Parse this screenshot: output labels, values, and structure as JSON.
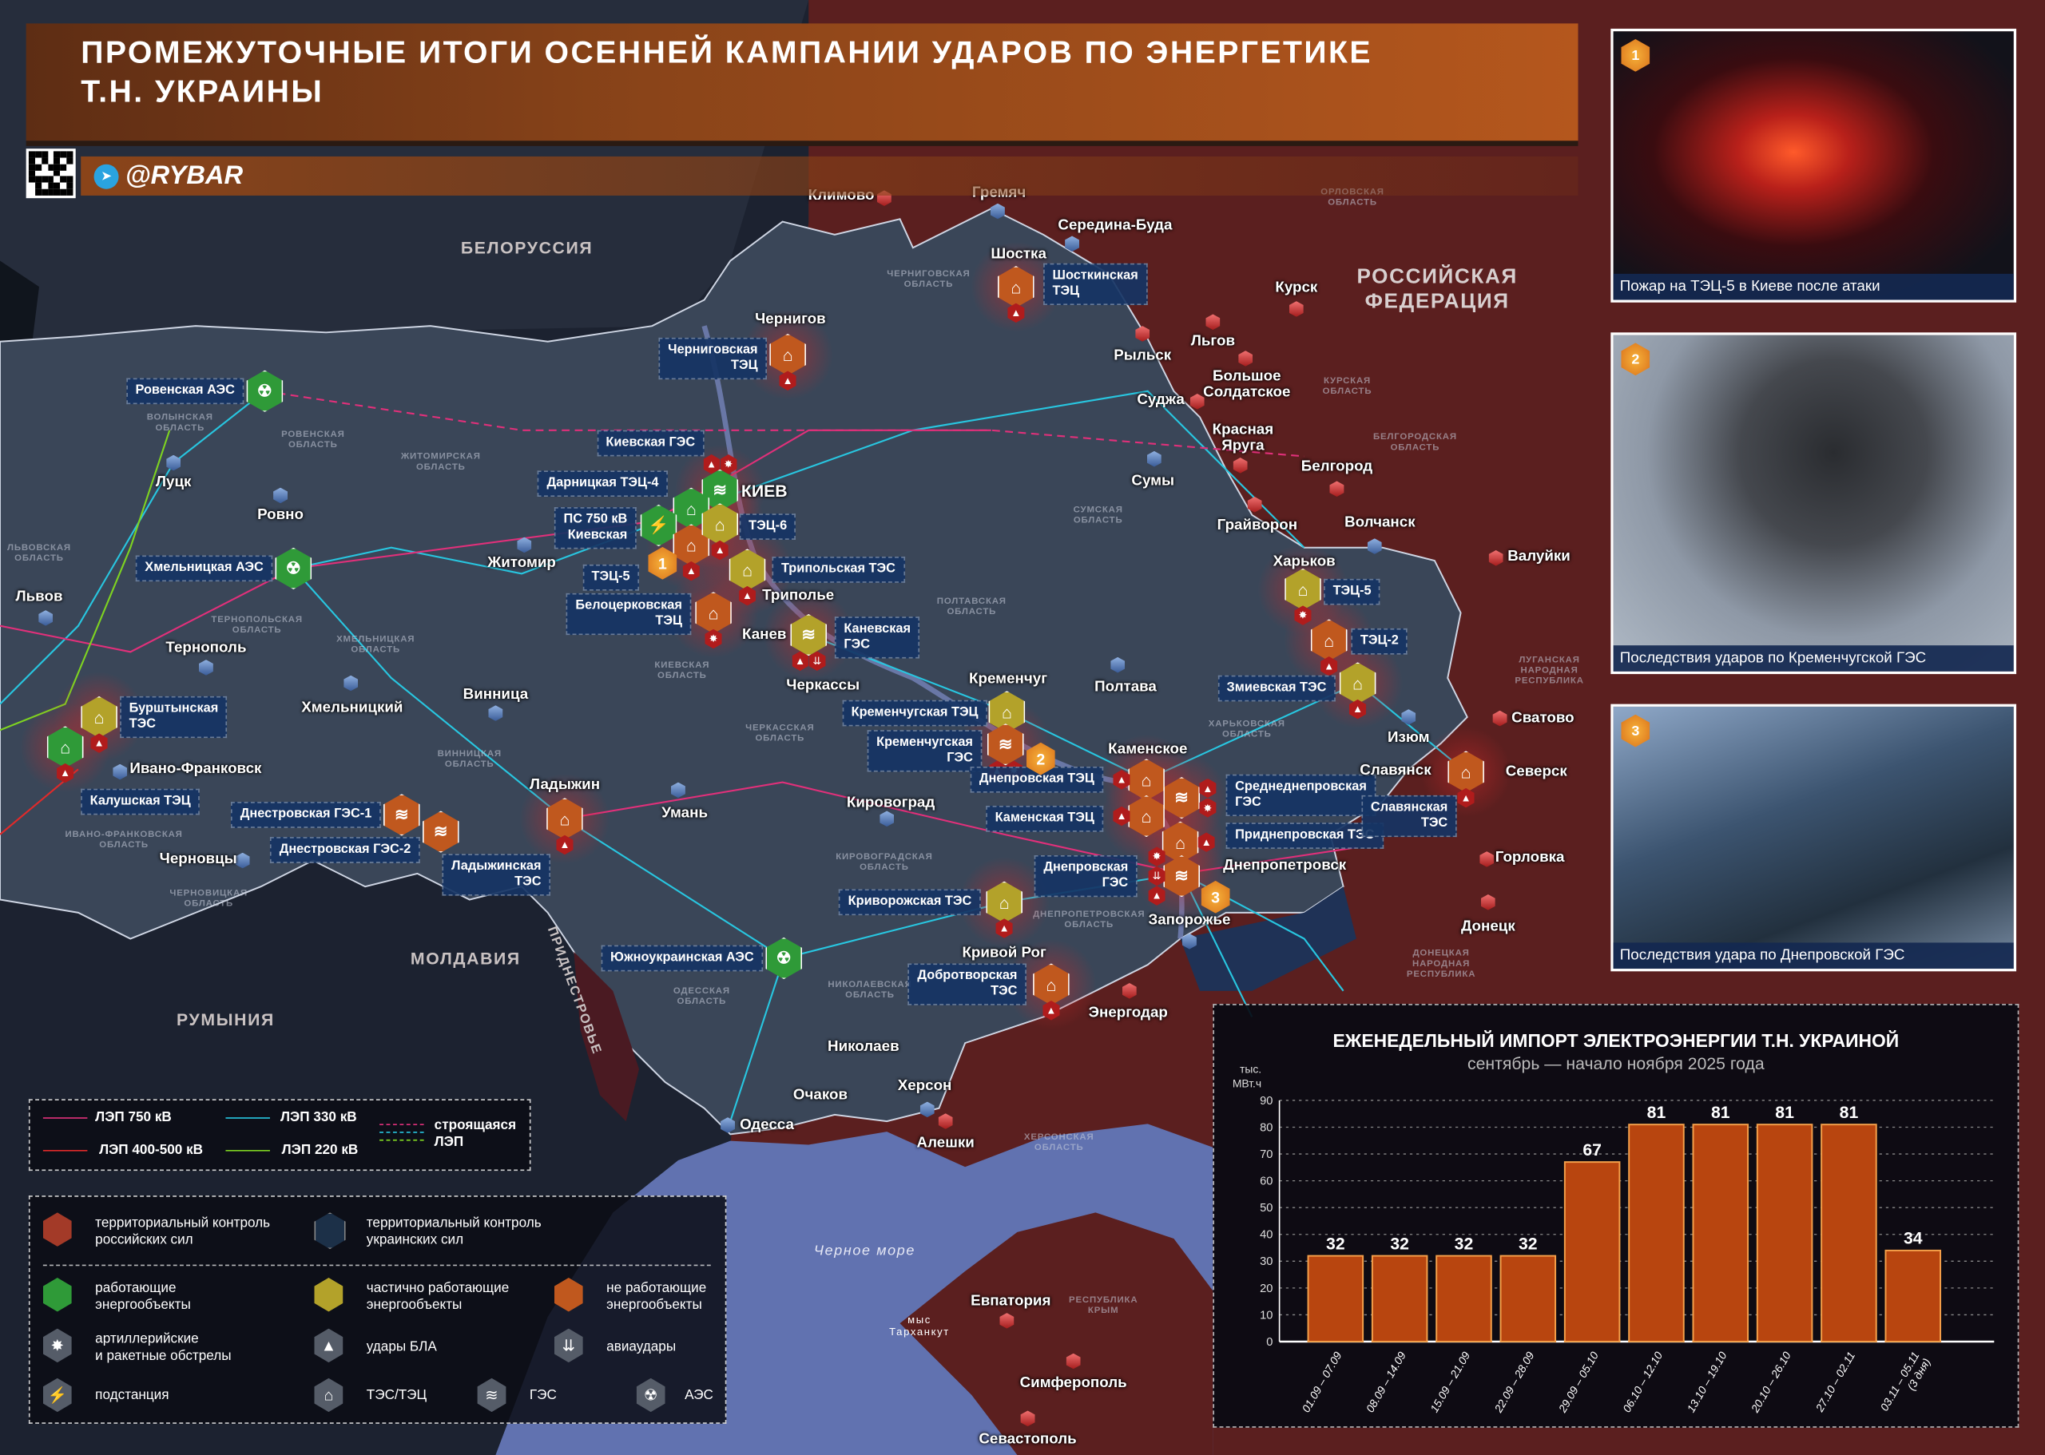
{
  "header": {
    "title_line1": "ПРОМЕЖУТОЧНЫЕ ИТОГИ ОСЕННЕЙ КАМПАНИИ УДАРОВ ПО ЭНЕРГЕТИКЕ",
    "title_line2": "Т.Н. УКРАИНЫ",
    "handle": "@RYBAR"
  },
  "countries": [
    "БЕЛОРУССИЯ",
    "РОССИЙСКАЯ\nФЕДЕРАЦИЯ",
    "МОЛДАВИЯ",
    "РУМЫНИЯ",
    "ПРИДНЕСТРОВЬЕ",
    "Черное море",
    "мыс\nТарханкут"
  ],
  "regions": [
    "ЧЕРНИГОВСКАЯ\nОБЛАСТЬ",
    "ОРЛОВСКАЯ\nОБЛАСТЬ",
    "КУРСКАЯ\nОБЛАСТЬ",
    "БЕЛГОРОДСКАЯ\nОБЛАСТЬ",
    "СУМСКАЯ\nОБЛАСТЬ",
    "ПОЛТАВСКАЯ\nОБЛАСТЬ",
    "КИЕВСКАЯ\nОБЛАСТЬ",
    "ЧЕРКАССКАЯ\nОБЛАСТЬ",
    "ХАРЬКОВСКАЯ\nОБЛАСТЬ",
    "ЛУГАНСКАЯ\nНАРОДНАЯ\nРЕСПУБЛИКА",
    "ДОНЕЦКАЯ\nНАРОДНАЯ\nРЕСПУБЛИКА",
    "ВОЛЫНСКАЯ\nОБЛАСТЬ",
    "РОВЕНСКАЯ\nОБЛАСТЬ",
    "ЖИТОМИРСКАЯ\nОБЛАСТЬ",
    "ЛЬВОВСКАЯ\nОБЛАСТЬ",
    "ТЕРНОПОЛЬСКАЯ\nОБЛАСТЬ",
    "ХМЕЛЬНИЦКАЯ\nОБЛАСТЬ",
    "ВИННИЦКАЯ\nОБЛАСТЬ",
    "КИРОВОГРАДСКАЯ\nОБЛАСТЬ",
    "ДНЕПРОПЕТРОВСКАЯ\nОБЛАСТЬ",
    "НИКОЛАЕВСКАЯ\nОБЛАСТЬ",
    "ОДЕССКАЯ\nОБЛАСТЬ",
    "ИВАНО-ФРАНКОВСКАЯ\nОБЛАСТЬ",
    "ЧЕРНОВИЦКАЯ\nОБЛАСТЬ",
    "ХЕРСОНСКАЯ\nОБЛАСТЬ",
    "РЕСПУБЛИКА\nКРЫМ"
  ],
  "cities": [
    {
      "name": "Климово",
      "side": "ru"
    },
    {
      "name": "Гремяч",
      "side": "ua"
    },
    {
      "name": "Середина-Буда",
      "side": "ua"
    },
    {
      "name": "Шостка",
      "side": "ua"
    },
    {
      "name": "Чернигов",
      "side": "ua"
    },
    {
      "name": "Курск",
      "side": "ru"
    },
    {
      "name": "Рыльск",
      "side": "ru"
    },
    {
      "name": "Льгов",
      "side": "ru"
    },
    {
      "name": "Большое\nСолдатское",
      "side": "ru"
    },
    {
      "name": "Суджа",
      "side": "ru"
    },
    {
      "name": "Красная\nЯруга",
      "side": "ru"
    },
    {
      "name": "Белгород",
      "side": "ru"
    },
    {
      "name": "Грайворон",
      "side": "ru"
    },
    {
      "name": "Волчанск",
      "side": "ua"
    },
    {
      "name": "Валуйки",
      "side": "ru"
    },
    {
      "name": "Харьков",
      "side": "ua"
    },
    {
      "name": "Сумы",
      "side": "ua"
    },
    {
      "name": "КИЕВ",
      "side": "ua"
    },
    {
      "name": "Житомир",
      "side": "ua"
    },
    {
      "name": "Ровно",
      "side": "ua"
    },
    {
      "name": "Луцк",
      "side": "ua"
    },
    {
      "name": "Львов",
      "side": "ua"
    },
    {
      "name": "Тернополь",
      "side": "ua"
    },
    {
      "name": "Хмельницкий",
      "side": "ua"
    },
    {
      "name": "Винница",
      "side": "ua"
    },
    {
      "name": "Ивано-Франковск",
      "side": "ua"
    },
    {
      "name": "Черновцы",
      "side": "ua"
    },
    {
      "name": "Триполье",
      "side": "ua"
    },
    {
      "name": "Канев",
      "side": "ua"
    },
    {
      "name": "Черкассы",
      "side": "ua"
    },
    {
      "name": "Кременчуг",
      "side": "ua"
    },
    {
      "name": "Полтава",
      "side": "ua"
    },
    {
      "name": "Каменское",
      "side": "ua"
    },
    {
      "name": "Кировоград",
      "side": "ua"
    },
    {
      "name": "Умань",
      "side": "ua"
    },
    {
      "name": "Ладыжин",
      "side": "ua"
    },
    {
      "name": "Днепропетровск",
      "side": "ua"
    },
    {
      "name": "Запорожье",
      "side": "ua"
    },
    {
      "name": "Кривой Рог",
      "side": "ua"
    },
    {
      "name": "Изюм",
      "side": "ua"
    },
    {
      "name": "Славянск",
      "side": "ua"
    },
    {
      "name": "Северск",
      "side": "ua"
    },
    {
      "name": "Сватово",
      "side": "ru"
    },
    {
      "name": "Горловка",
      "side": "ru"
    },
    {
      "name": "Донецк",
      "side": "ru"
    },
    {
      "name": "Энергодар",
      "side": "ru"
    },
    {
      "name": "Николаев",
      "side": "ua"
    },
    {
      "name": "Херсон",
      "side": "ua"
    },
    {
      "name": "Алешки",
      "side": "ru"
    },
    {
      "name": "Очаков",
      "side": "ua"
    },
    {
      "name": "Одесса",
      "side": "ua"
    },
    {
      "name": "Евпатория",
      "side": "ru"
    },
    {
      "name": "Симферополь",
      "side": "ru"
    },
    {
      "name": "Севастополь",
      "side": "ru"
    }
  ],
  "facilities": [
    {
      "name": "Ровенская АЭС",
      "type": "aes",
      "status": "working",
      "attacks": []
    },
    {
      "name": "Хмельницкая АЭС",
      "type": "aes",
      "status": "working",
      "attacks": []
    },
    {
      "name": "Бурштынская\nТЭС",
      "type": "tes",
      "status": "partial",
      "attacks": [
        "drone"
      ]
    },
    {
      "name": "Калушская ТЭЦ",
      "type": "tes",
      "status": "working",
      "attacks": [
        "drone"
      ]
    },
    {
      "name": "Днестровская ГЭС-1",
      "type": "ges",
      "status": "down",
      "attacks": []
    },
    {
      "name": "Днестровская ГЭС-2",
      "type": "ges",
      "status": "down",
      "attacks": []
    },
    {
      "name": "Ладыжинская\nТЭС",
      "type": "tes",
      "status": "down",
      "attacks": [
        "drone"
      ]
    },
    {
      "name": "Южноукраинская АЭС",
      "type": "aes",
      "status": "working",
      "attacks": []
    },
    {
      "name": "Шосткинская\nТЭЦ",
      "type": "tes",
      "status": "down",
      "attacks": [
        "drone"
      ]
    },
    {
      "name": "Черниговская\nТЭЦ",
      "type": "tes",
      "status": "down",
      "attacks": [
        "drone"
      ]
    },
    {
      "name": "Киевская ГЭС",
      "type": "ges",
      "status": "working",
      "attacks": [
        "drone",
        "artillery"
      ]
    },
    {
      "name": "Дарницкая ТЭЦ-4",
      "type": "tes",
      "status": "working",
      "attacks": []
    },
    {
      "name": "ПС 750 кВ\nКиевская",
      "type": "substation",
      "status": "working",
      "attacks": []
    },
    {
      "name": "ТЭЦ-5",
      "type": "tes",
      "status": "down",
      "attacks": [
        "drone"
      ]
    },
    {
      "name": "ТЭЦ-6",
      "type": "tes",
      "status": "partial",
      "attacks": [
        "drone"
      ]
    },
    {
      "name": "Трипольская ТЭС",
      "type": "tes",
      "status": "partial",
      "attacks": [
        "drone"
      ]
    },
    {
      "name": "Белоцерковская\nТЭЦ",
      "type": "tes",
      "status": "down",
      "attacks": [
        "artillery"
      ]
    },
    {
      "name": "Каневская\nГЭС",
      "type": "ges",
      "status": "partial",
      "attacks": [
        "drone",
        "airstrike"
      ]
    },
    {
      "name": "Кременчугская ТЭЦ",
      "type": "tes",
      "status": "partial",
      "attacks": []
    },
    {
      "name": "Кременчугская\nГЭС",
      "type": "ges",
      "status": "down",
      "attacks": [
        "drone",
        "artillery"
      ]
    },
    {
      "name": "Днепровская ТЭЦ",
      "type": "tes",
      "status": "down",
      "attacks": [
        "drone"
      ]
    },
    {
      "name": "Каменская ТЭЦ",
      "type": "tes",
      "status": "down",
      "attacks": [
        "drone"
      ]
    },
    {
      "name": "Среднеднепровская\nГЭС",
      "type": "ges",
      "status": "down",
      "attacks": [
        "drone",
        "artillery"
      ]
    },
    {
      "name": "Приднепровская ТЭС",
      "type": "tes",
      "status": "down",
      "attacks": [
        "drone"
      ]
    },
    {
      "name": "Днепровская\nГЭС",
      "type": "ges",
      "status": "down",
      "attacks": [
        "artillery",
        "airstrike",
        "drone"
      ]
    },
    {
      "name": "Криворожская ТЭС",
      "type": "tes",
      "status": "partial",
      "attacks": [
        "drone"
      ]
    },
    {
      "name": "Добротворская\nТЭС",
      "type": "tes",
      "status": "down",
      "attacks": [
        "drone"
      ]
    },
    {
      "name": "ТЭЦ-5",
      "type": "tes",
      "status": "partial",
      "attacks": [
        "artillery"
      ]
    },
    {
      "name": "ТЭЦ-2",
      "type": "tes",
      "status": "down",
      "attacks": [
        "drone"
      ]
    },
    {
      "name": "Змиевская ТЭС",
      "type": "tes",
      "status": "partial",
      "attacks": [
        "drone"
      ]
    },
    {
      "name": "Славянская\nТЭС",
      "type": "tes",
      "status": "down",
      "attacks": [
        "drone"
      ]
    }
  ],
  "markers": [
    "1",
    "2",
    "3"
  ],
  "photos": [
    {
      "number": "1",
      "caption": "Пожар на ТЭЦ-5 в Киеве после атаки"
    },
    {
      "number": "2",
      "caption": "Последствия ударов по Кременчугской ГЭС"
    },
    {
      "number": "3",
      "caption": "Последствия удара по Днепровской ГЭС"
    }
  ],
  "legend": {
    "lines": [
      {
        "label": "ЛЭП 750 кВ",
        "color": "#e0307a"
      },
      {
        "label": "ЛЭП 330 кВ",
        "color": "#28c6e0"
      },
      {
        "label": "ЛЭП 400-500 кВ",
        "color": "#e02a2a"
      },
      {
        "label": "ЛЭП 220 кВ",
        "color": "#7ed321"
      }
    ],
    "construction": "строящаяся\nЛЭП",
    "control_ru": "территориальный контроль\nроссийских сил",
    "control_ua": "территориальный контроль\nукраинских сил",
    "working": "работающие\nэнергообъекты",
    "partial": "частично работающие\nэнергообъекты",
    "down": "не работающие\nэнергообъекты",
    "artillery": "артиллерийские\nи ракетные обстрелы",
    "drone": "удары БЛА",
    "airstrike": "авиаудары",
    "substation": "подстанция",
    "tes": "ТЭС/ТЭЦ",
    "ges": "ГЭС",
    "aes": "АЭС"
  },
  "colors": {
    "working": "#2f9a38",
    "partial": "#b3a22a",
    "down": "#c0581e",
    "russia": "#5b1f1f",
    "ukraine": "#3a4658",
    "sea": "#6172b0",
    "header": "#b5571d"
  },
  "chart_data": {
    "type": "bar",
    "title": "ЕЖЕНЕДЕЛЬНЫЙ ИМПОРТ ЭЛЕКТРОЭНЕРГИИ Т.Н. УКРАИНОЙ",
    "subtitle": "сентябрь — начало ноября 2025 года",
    "ylabel": "тыс.\nМВт.ч",
    "xlabel": "",
    "categories": [
      "01.09 – 07.09",
      "08.09 – 14.09",
      "15.09 – 21.09",
      "22.09 – 28.09",
      "29.09 – 05.10",
      "06.10 – 12.10",
      "13.10 – 19.10",
      "20.10 – 26.10",
      "27.10 – 02.11",
      "03.11 – 05.11\n(3 дня)"
    ],
    "values": [
      32,
      32,
      32,
      32,
      67,
      81,
      81,
      81,
      81,
      34
    ],
    "ylim": [
      0,
      90
    ],
    "yticks": [
      0,
      10,
      20,
      30,
      40,
      50,
      60,
      70,
      80,
      90
    ],
    "grid": true,
    "bar_color": "#b8450f"
  }
}
